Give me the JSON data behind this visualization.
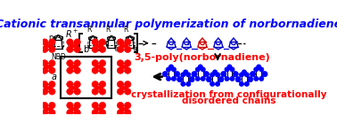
{
  "title": "Cationic transannular polymerization of norbornadiene",
  "title_color": "#0000FF",
  "title_fontsize": 9.0,
  "label_35poly": "3,5-poly(norbornadiene)",
  "label_35poly_color": "#FF0000",
  "label_35poly_fontsize": 8.0,
  "label_cryst1": "crystallization from configurationally",
  "label_cryst2": "disordered chains",
  "label_cryst_color": "#FF0000",
  "label_cryst_fontsize": 7.5,
  "bg_color": "#FFFFFF",
  "poly_blue": "#0000CC",
  "poly_red": "#CC0000",
  "crystal_red": "#FF0000",
  "chain_blue": "#0000FF",
  "figsize": [
    3.78,
    1.48
  ],
  "dpi": 100
}
